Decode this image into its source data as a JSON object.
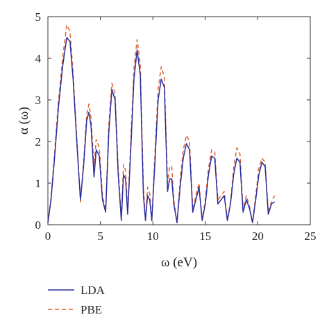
{
  "chart_data": {
    "type": "line",
    "xlabel": "ω (eV)",
    "ylabel": "α (ω)",
    "xlim": [
      0,
      25
    ],
    "ylim": [
      0,
      5
    ],
    "xticks": [
      "0",
      "5",
      "10",
      "15",
      "20",
      "25"
    ],
    "yticks": [
      "0",
      "1",
      "2",
      "3",
      "4",
      "5"
    ],
    "grid": false,
    "legend_position": "bottom-left",
    "series": [
      {
        "name": "LDA",
        "color": "#2b2f9e",
        "style": "solid",
        "x": [
          0,
          0.3,
          0.6,
          1.0,
          1.4,
          1.8,
          2.1,
          2.4,
          2.8,
          3.1,
          3.4,
          3.7,
          3.9,
          4.1,
          4.4,
          4.6,
          4.9,
          5.2,
          5.5,
          5.8,
          6.1,
          6.4,
          6.7,
          7.0,
          7.2,
          7.4,
          7.6,
          7.9,
          8.2,
          8.5,
          8.8,
          9.1,
          9.3,
          9.5,
          9.7,
          9.9,
          10.2,
          10.5,
          10.8,
          11.1,
          11.4,
          11.6,
          11.8,
          12.0,
          12.3,
          12.6,
          12.9,
          13.2,
          13.5,
          13.8,
          14.1,
          14.4,
          14.7,
          15.0,
          15.3,
          15.6,
          15.9,
          16.2,
          16.5,
          16.8,
          17.1,
          17.4,
          17.7,
          18.0,
          18.3,
          18.6,
          18.9,
          19.2,
          19.5,
          19.8,
          20.1,
          20.4,
          20.7,
          21.0,
          21.3,
          21.6
        ],
        "y": [
          0.05,
          0.6,
          1.5,
          2.8,
          3.8,
          4.5,
          4.4,
          3.5,
          1.8,
          0.6,
          1.4,
          2.5,
          2.7,
          2.4,
          1.15,
          1.8,
          1.65,
          0.6,
          0.3,
          2.2,
          3.25,
          3.0,
          1.2,
          0.1,
          1.2,
          1.1,
          0.25,
          1.8,
          3.5,
          4.2,
          3.6,
          0.7,
          0.1,
          0.7,
          0.6,
          0.1,
          1.5,
          3.0,
          3.5,
          3.3,
          0.8,
          1.1,
          1.1,
          0.5,
          0.05,
          0.9,
          1.6,
          1.95,
          1.8,
          0.3,
          0.6,
          0.9,
          0.1,
          0.5,
          1.2,
          1.65,
          1.6,
          0.5,
          0.6,
          0.7,
          0.1,
          0.5,
          1.2,
          1.6,
          1.5,
          0.3,
          0.6,
          0.4,
          0.05,
          0.6,
          1.2,
          1.5,
          1.4,
          0.25,
          0.5,
          0.55
        ]
      },
      {
        "name": "PBE",
        "color": "#e06030",
        "style": "dashed",
        "x": [
          0,
          0.3,
          0.6,
          1.0,
          1.4,
          1.8,
          2.1,
          2.4,
          2.8,
          3.1,
          3.4,
          3.7,
          3.9,
          4.1,
          4.4,
          4.6,
          4.9,
          5.2,
          5.5,
          5.8,
          6.1,
          6.4,
          6.7,
          7.0,
          7.2,
          7.4,
          7.6,
          7.9,
          8.2,
          8.5,
          8.8,
          9.1,
          9.3,
          9.5,
          9.7,
          9.9,
          10.2,
          10.5,
          10.8,
          11.1,
          11.4,
          11.6,
          11.8,
          12.0,
          12.3,
          12.6,
          12.9,
          13.2,
          13.5,
          13.8,
          14.1,
          14.4,
          14.7,
          15.0,
          15.3,
          15.6,
          15.9,
          16.2,
          16.5,
          16.8,
          17.1,
          17.4,
          17.7,
          18.0,
          18.3,
          18.6,
          18.9,
          19.2,
          19.5,
          19.8,
          20.1,
          20.4,
          20.7,
          21.0,
          21.3,
          21.6
        ],
        "y": [
          0.05,
          0.65,
          1.6,
          2.95,
          4.0,
          4.8,
          4.65,
          3.65,
          1.9,
          0.55,
          1.5,
          2.65,
          2.9,
          2.6,
          1.4,
          2.05,
          1.85,
          0.7,
          0.35,
          2.4,
          3.4,
          3.15,
          1.35,
          0.15,
          1.45,
          1.3,
          0.3,
          2.0,
          3.75,
          4.45,
          3.85,
          0.9,
          0.1,
          0.9,
          0.75,
          0.1,
          1.7,
          3.25,
          3.8,
          3.55,
          1.0,
          1.4,
          1.4,
          0.6,
          0.05,
          1.05,
          1.8,
          2.15,
          2.0,
          0.35,
          0.7,
          1.0,
          0.1,
          0.6,
          1.35,
          1.8,
          1.75,
          0.6,
          0.7,
          0.8,
          0.1,
          0.55,
          1.35,
          1.85,
          1.7,
          0.35,
          0.7,
          0.45,
          0.05,
          0.7,
          1.35,
          1.6,
          1.5,
          0.3,
          0.55,
          0.7
        ]
      }
    ]
  }
}
